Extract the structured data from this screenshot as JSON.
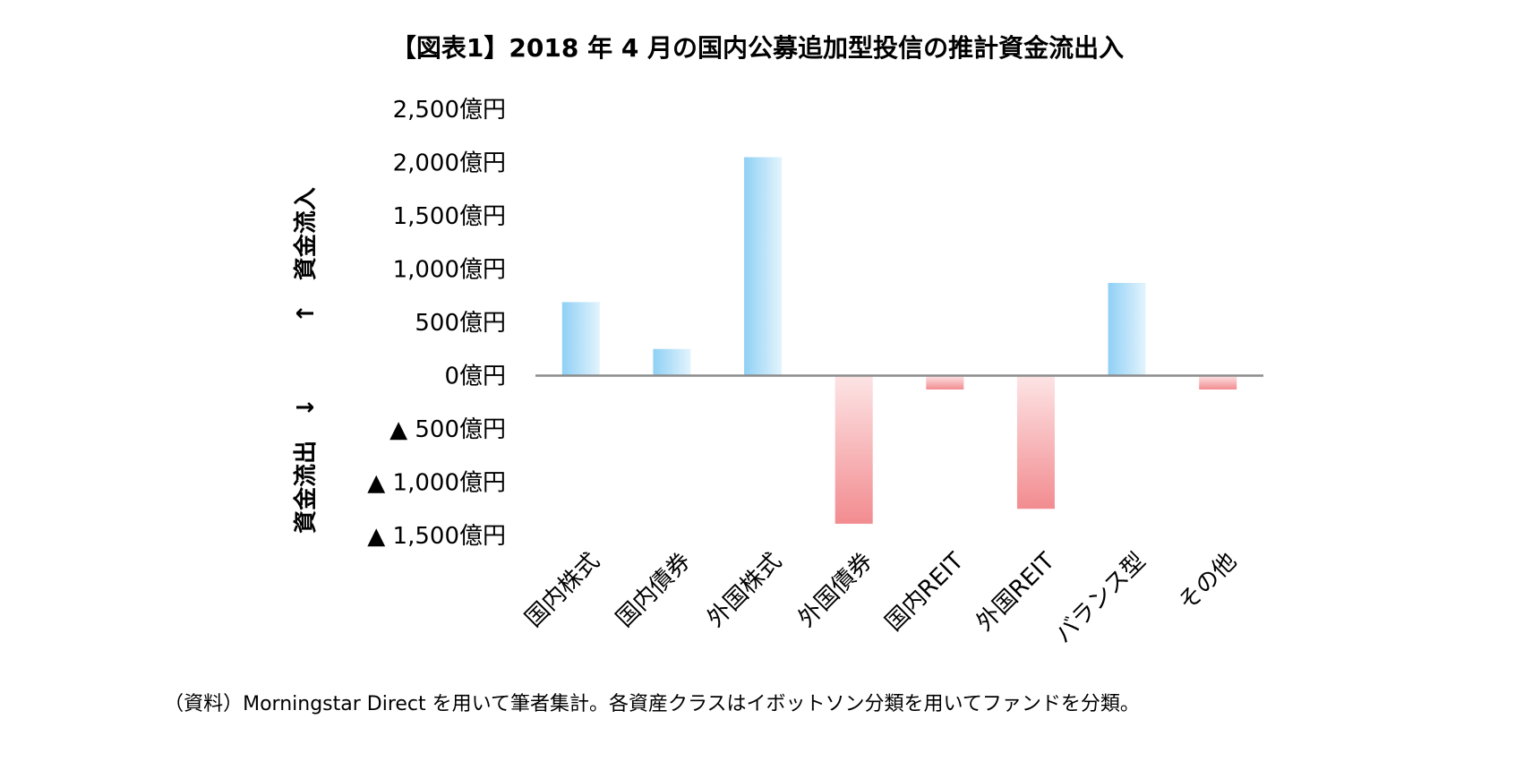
{
  "chart_data": {
    "type": "bar",
    "title": "【図表1】2018 年 4 月の国内公募追加型投信の推計資金流出入",
    "categories": [
      "国内株式",
      "国内債券",
      "外国株式",
      "外国債券",
      "国内REIT",
      "外国REIT",
      "バランス型",
      "その他"
    ],
    "values": [
      690,
      250,
      2050,
      -1390,
      -130,
      -1250,
      870,
      -130
    ],
    "unit": "億円",
    "ylim": [
      -1500,
      2500
    ],
    "yticks": [
      2500,
      2000,
      1500,
      1000,
      500,
      0,
      -500,
      -1000,
      -1500
    ],
    "ytick_labels": [
      "2,500億円",
      "2,000億円",
      "1,500億円",
      "1,000億円",
      "500億円",
      "0億円",
      "▲ 500億円",
      "▲ 1,000億円",
      "▲ 1,500億円"
    ],
    "inflow_label": "↑　資金流入",
    "outflow_label": "資金流出　↓",
    "grid": false,
    "legend": "none",
    "colors": {
      "positive": "#8fd0f5",
      "negative": "#f28c90",
      "axis": "#8c8c8c"
    }
  },
  "source_note": "（資料）Morningstar Direct を用いて筆者集計。各資産クラスはイボットソン分類を用いてファンドを分類。"
}
